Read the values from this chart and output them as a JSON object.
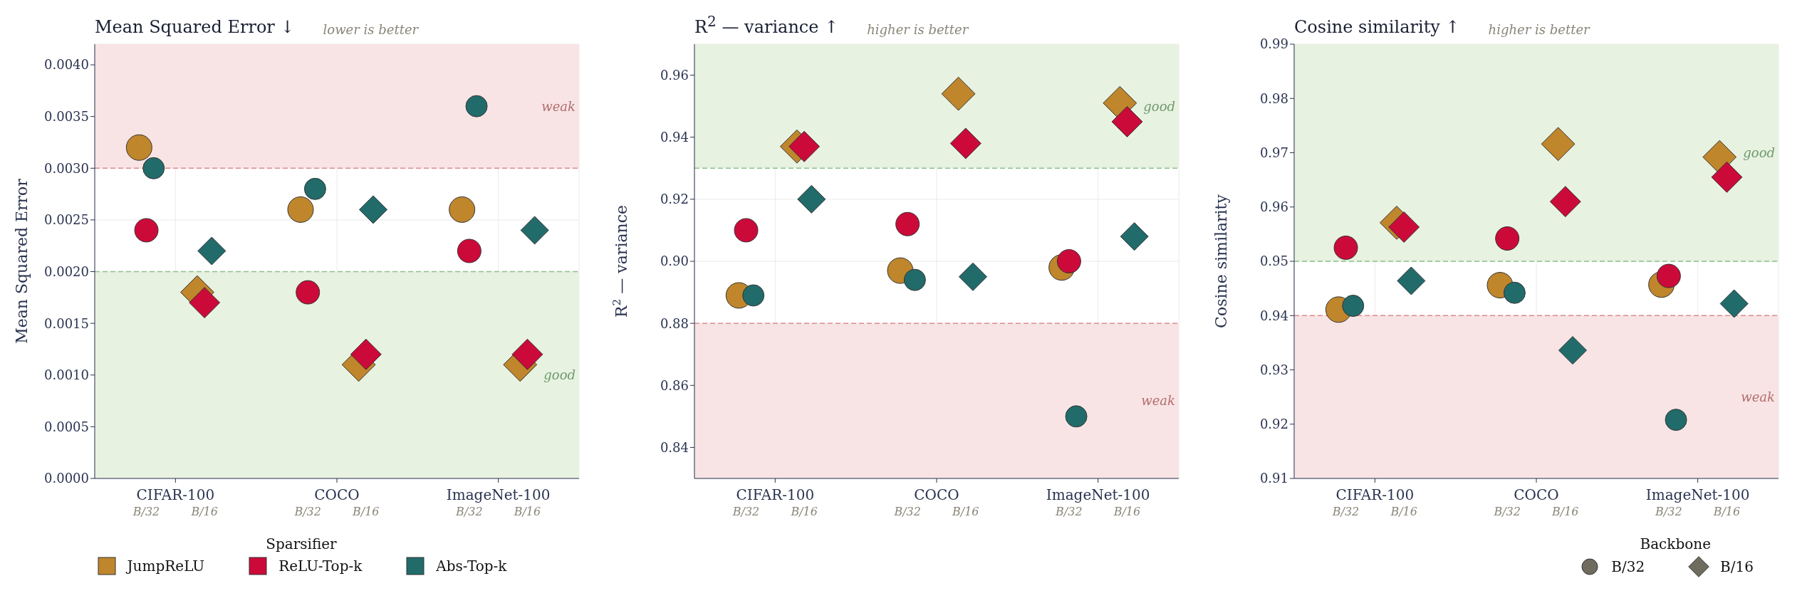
{
  "chart_data": [
    {
      "type": "scatter",
      "title": "Mean Squared Error  ↓",
      "subtitle": "lower is better",
      "ylabel": "Mean Squared Error",
      "categories": [
        "CIFAR-100",
        "COCO",
        "ImageNet-100"
      ],
      "series": [
        {
          "name": "JumpReLU",
          "color": "#c0862c",
          "marker": "circle",
          "values": [
            0.0032,
            0.0026,
            0.0026
          ]
        },
        {
          "name": "ReLU-Top-k",
          "color": "#cc0a3a",
          "marker": "circle",
          "values": [
            0.0024,
            0.0018,
            0.0022
          ]
        },
        {
          "name": "Abs-Top-k",
          "color": "#226b6b",
          "marker": "circle",
          "values": [
            0.003,
            0.0028,
            0.0036
          ]
        },
        {
          "color": "#c0862c",
          "marker": "diamond",
          "values": [
            0.0018,
            0.0011,
            0.0011
          ]
        },
        {
          "color": "#cc0a3a",
          "marker": "diamond",
          "values": [
            0.0017,
            0.0012,
            0.0012
          ]
        },
        {
          "color": "#226b6b",
          "marker": "diamond",
          "values": [
            0.0022,
            0.0026,
            0.0024
          ]
        }
      ],
      "ylim": [
        0,
        0.0042
      ],
      "yticks": [
        {
          "value": 0,
          "label": "0.0000"
        },
        {
          "value": 0.0005,
          "label": "0.0005"
        },
        {
          "value": 0.001,
          "label": "0.0010"
        },
        {
          "value": 0.0015,
          "label": "0.0015"
        },
        {
          "value": 0.002,
          "label": "0.0020"
        },
        {
          "value": 0.0025,
          "label": "0.0025"
        },
        {
          "value": 0.003,
          "label": "0.0030"
        },
        {
          "value": 0.0035,
          "label": "0.0035"
        },
        {
          "value": 0.004,
          "label": "0.0040"
        }
      ],
      "bands": [
        {
          "axis": "y",
          "from": 0.003,
          "to": 0.0042,
          "label": "weak",
          "color": "#f8e4e5"
        },
        {
          "axis": "y",
          "from": 0,
          "to": 0.002,
          "label": "good",
          "color": "#e8f2e1"
        }
      ],
      "ref_lines": [
        {
          "axis": "y",
          "value": 0.003,
          "color": "#e08a8a",
          "line_style": "dashed"
        },
        {
          "axis": "y",
          "value": 0.002,
          "color": "#8cc08c",
          "line_style": "dashed"
        }
      ],
      "annotations": [
        "B/32",
        "B/16",
        "B/32",
        "B/16",
        "B/32",
        "B/16"
      ],
      "grid": true,
      "legend": "bottom",
      "legend_title": "Sparsifier"
    },
    {
      "type": "scatter",
      "title": "R$^{2}$ — variance  ↑",
      "subtitle": "higher is better",
      "ylabel": "R$^{2}$ — variance",
      "categories": [
        "CIFAR-100",
        "COCO",
        "ImageNet-100"
      ],
      "series": [
        {
          "color": "#c0862c",
          "marker": "circle",
          "values": [
            0.889,
            0.897,
            0.898
          ]
        },
        {
          "color": "#cc0a3a",
          "marker": "circle",
          "values": [
            0.91,
            0.912,
            0.9
          ]
        },
        {
          "color": "#226b6b",
          "marker": "circle",
          "values": [
            0.889,
            0.894,
            0.85
          ]
        },
        {
          "color": "#c0862c",
          "marker": "diamond",
          "values": [
            0.937,
            0.954,
            0.951
          ]
        },
        {
          "color": "#cc0a3a",
          "marker": "diamond",
          "values": [
            0.937,
            0.938,
            0.945
          ]
        },
        {
          "color": "#226b6b",
          "marker": "diamond",
          "values": [
            0.92,
            0.895,
            0.908
          ]
        }
      ],
      "ylim": [
        0.83,
        0.97
      ],
      "yticks": [
        {
          "value": 0.84,
          "label": "0.84"
        },
        {
          "value": 0.86,
          "label": "0.86"
        },
        {
          "value": 0.88,
          "label": "0.88"
        },
        {
          "value": 0.9,
          "label": "0.90"
        },
        {
          "value": 0.92,
          "label": "0.92"
        },
        {
          "value": 0.94,
          "label": "0.94"
        },
        {
          "value": 0.96,
          "label": "0.96"
        }
      ],
      "bands": [
        {
          "axis": "y",
          "from": 0.93,
          "to": 0.97,
          "label": "good",
          "color": "#e8f2e1"
        },
        {
          "axis": "y",
          "from": 0.83,
          "to": 0.88,
          "label": "weak",
          "color": "#f8e4e5"
        }
      ],
      "ref_lines": [
        {
          "axis": "y",
          "value": 0.93,
          "color": "#8cc08c",
          "line_style": "dashed"
        },
        {
          "axis": "y",
          "value": 0.88,
          "color": "#e08a8a",
          "line_style": "dashed"
        }
      ],
      "annotations": [
        "B/32",
        "B/16",
        "B/32",
        "B/16",
        "B/32",
        "B/16"
      ],
      "grid": true
    },
    {
      "type": "scatter",
      "title": "Cosine similarity  ↑",
      "subtitle": "higher is better",
      "ylabel": "Cosine similarity",
      "categories": [
        "CIFAR-100",
        "COCO",
        "ImageNet-100"
      ],
      "series": [
        {
          "color": "#c0862c",
          "marker": "circle",
          "values": [
            0.9411,
            0.9456,
            0.9457
          ]
        },
        {
          "color": "#cc0a3a",
          "marker": "circle",
          "values": [
            0.9525,
            0.9542,
            0.9473
          ]
        },
        {
          "color": "#226b6b",
          "marker": "circle",
          "values": [
            0.9418,
            0.9442,
            0.9208
          ]
        },
        {
          "color": "#c0862c",
          "marker": "diamond",
          "values": [
            0.9571,
            0.9716,
            0.9692
          ]
        },
        {
          "color": "#cc0a3a",
          "marker": "diamond",
          "values": [
            0.9563,
            0.961,
            0.9655
          ]
        },
        {
          "color": "#226b6b",
          "marker": "diamond",
          "values": [
            0.9464,
            0.9336,
            0.9422
          ]
        }
      ],
      "ylim": [
        0.91,
        0.99
      ],
      "yticks": [
        {
          "value": 0.91,
          "label": "0.91"
        },
        {
          "value": 0.92,
          "label": "0.92"
        },
        {
          "value": 0.93,
          "label": "0.93"
        },
        {
          "value": 0.94,
          "label": "0.94"
        },
        {
          "value": 0.95,
          "label": "0.95"
        },
        {
          "value": 0.96,
          "label": "0.96"
        },
        {
          "value": 0.97,
          "label": "0.97"
        },
        {
          "value": 0.98,
          "label": "0.98"
        },
        {
          "value": 0.99,
          "label": "0.99"
        }
      ],
      "bands": [
        {
          "axis": "y",
          "from": 0.95,
          "to": 0.99,
          "label": "good",
          "color": "#e8f2e1"
        },
        {
          "axis": "y",
          "from": 0.91,
          "to": 0.94,
          "label": "weak",
          "color": "#f8e4e5"
        }
      ],
      "ref_lines": [
        {
          "axis": "y",
          "value": 0.95,
          "color": "#8cc08c",
          "line_style": "dashed"
        },
        {
          "axis": "y",
          "value": 0.94,
          "color": "#e08a8a",
          "line_style": "dashed"
        }
      ],
      "annotations": [
        "B/32",
        "B/16",
        "B/32",
        "B/16",
        "B/32",
        "B/16",
        "B/32",
        "B/16"
      ],
      "grid": true,
      "legend_title": "Backbone"
    }
  ]
}
